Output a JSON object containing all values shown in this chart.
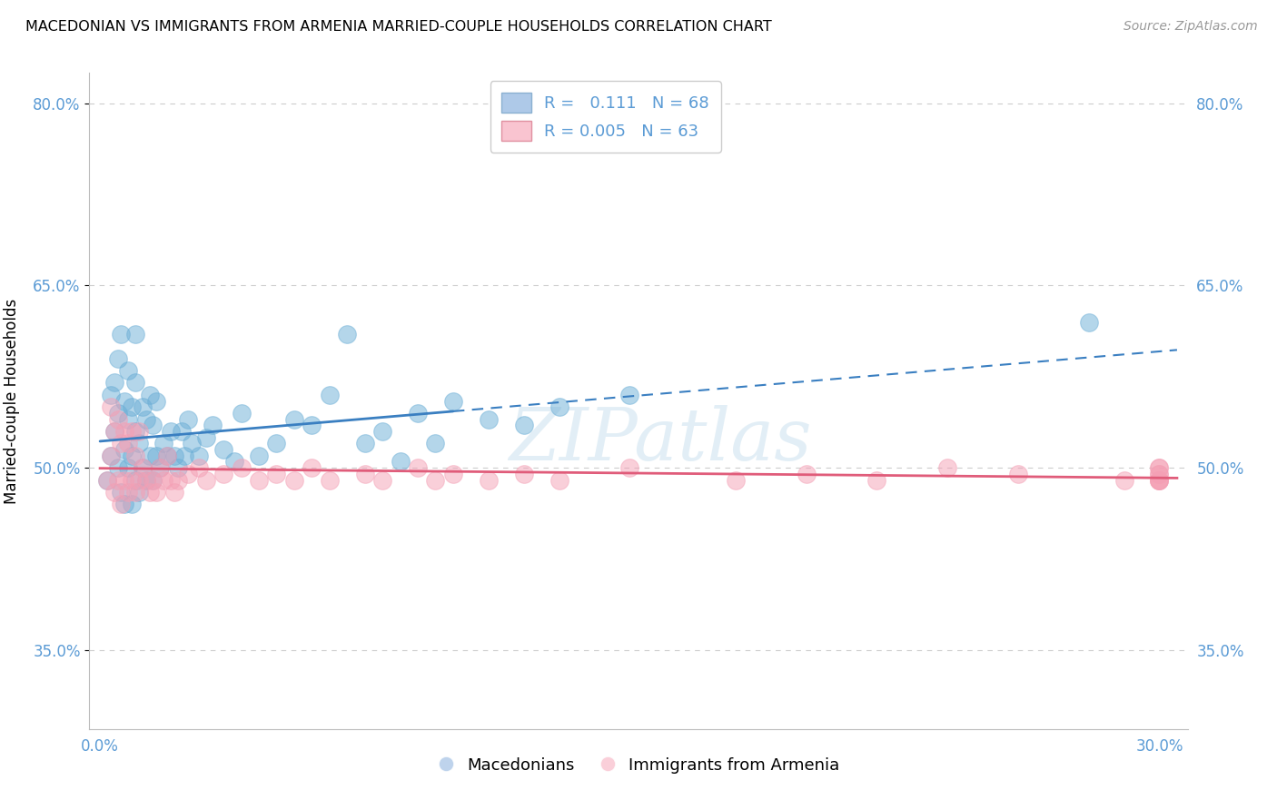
{
  "title": "MACEDONIAN VS IMMIGRANTS FROM ARMENIA MARRIED-COUPLE HOUSEHOLDS CORRELATION CHART",
  "source": "Source: ZipAtlas.com",
  "ylabel": "Married-couple Households",
  "ylim": [
    0.285,
    0.825
  ],
  "xlim": [
    -0.003,
    0.308
  ],
  "yticks": [
    0.35,
    0.5,
    0.65,
    0.8
  ],
  "ytick_labels": [
    "35.0%",
    "50.0%",
    "65.0%",
    "80.0%"
  ],
  "xticks": [
    0.0,
    0.05,
    0.1,
    0.15,
    0.2,
    0.25,
    0.3
  ],
  "xtick_labels": [
    "0.0%",
    "",
    "",
    "",
    "",
    "",
    "30.0%"
  ],
  "R_macedonian": 0.111,
  "N_macedonian": 68,
  "R_armenian": 0.005,
  "N_armenian": 63,
  "blue_color": "#6baed6",
  "pink_color": "#f4a0b5",
  "blue_line_color": "#3a7fc1",
  "pink_line_color": "#e05c7a",
  "grid_color": "#cccccc",
  "watermark": "ZIPatlas",
  "macedonian_x": [
    0.002,
    0.003,
    0.003,
    0.004,
    0.004,
    0.005,
    0.005,
    0.005,
    0.006,
    0.006,
    0.007,
    0.007,
    0.007,
    0.008,
    0.008,
    0.008,
    0.009,
    0.009,
    0.009,
    0.01,
    0.01,
    0.01,
    0.01,
    0.011,
    0.011,
    0.012,
    0.012,
    0.013,
    0.013,
    0.014,
    0.014,
    0.015,
    0.015,
    0.016,
    0.016,
    0.017,
    0.018,
    0.019,
    0.02,
    0.021,
    0.022,
    0.023,
    0.024,
    0.025,
    0.026,
    0.028,
    0.03,
    0.032,
    0.035,
    0.038,
    0.04,
    0.045,
    0.05,
    0.055,
    0.06,
    0.065,
    0.07,
    0.075,
    0.08,
    0.085,
    0.09,
    0.095,
    0.1,
    0.11,
    0.12,
    0.13,
    0.15,
    0.28
  ],
  "macedonian_y": [
    0.49,
    0.51,
    0.56,
    0.53,
    0.57,
    0.5,
    0.545,
    0.59,
    0.48,
    0.61,
    0.47,
    0.515,
    0.555,
    0.5,
    0.54,
    0.58,
    0.47,
    0.51,
    0.55,
    0.49,
    0.53,
    0.57,
    0.61,
    0.48,
    0.52,
    0.5,
    0.55,
    0.49,
    0.54,
    0.51,
    0.56,
    0.49,
    0.535,
    0.51,
    0.555,
    0.5,
    0.52,
    0.51,
    0.53,
    0.51,
    0.5,
    0.53,
    0.51,
    0.54,
    0.52,
    0.51,
    0.525,
    0.535,
    0.515,
    0.505,
    0.545,
    0.51,
    0.52,
    0.54,
    0.535,
    0.56,
    0.61,
    0.52,
    0.53,
    0.505,
    0.545,
    0.52,
    0.555,
    0.54,
    0.535,
    0.55,
    0.56,
    0.62
  ],
  "armenian_x": [
    0.002,
    0.003,
    0.003,
    0.004,
    0.004,
    0.005,
    0.005,
    0.006,
    0.006,
    0.007,
    0.007,
    0.008,
    0.008,
    0.009,
    0.009,
    0.01,
    0.01,
    0.011,
    0.011,
    0.012,
    0.013,
    0.014,
    0.015,
    0.016,
    0.017,
    0.018,
    0.019,
    0.02,
    0.021,
    0.022,
    0.025,
    0.028,
    0.03,
    0.035,
    0.04,
    0.045,
    0.05,
    0.055,
    0.06,
    0.065,
    0.075,
    0.08,
    0.09,
    0.095,
    0.1,
    0.11,
    0.12,
    0.13,
    0.15,
    0.18,
    0.2,
    0.22,
    0.24,
    0.26,
    0.29,
    0.3,
    0.3,
    0.3,
    0.3,
    0.3,
    0.3,
    0.3,
    0.3
  ],
  "armenian_y": [
    0.49,
    0.51,
    0.55,
    0.48,
    0.53,
    0.49,
    0.54,
    0.47,
    0.52,
    0.49,
    0.53,
    0.48,
    0.52,
    0.49,
    0.53,
    0.48,
    0.51,
    0.49,
    0.53,
    0.5,
    0.49,
    0.48,
    0.49,
    0.48,
    0.5,
    0.49,
    0.51,
    0.49,
    0.48,
    0.49,
    0.495,
    0.5,
    0.49,
    0.495,
    0.5,
    0.49,
    0.495,
    0.49,
    0.5,
    0.49,
    0.495,
    0.49,
    0.5,
    0.49,
    0.495,
    0.49,
    0.495,
    0.49,
    0.5,
    0.49,
    0.495,
    0.49,
    0.5,
    0.495,
    0.49,
    0.5,
    0.49,
    0.495,
    0.49,
    0.495,
    0.49,
    0.49,
    0.5
  ]
}
